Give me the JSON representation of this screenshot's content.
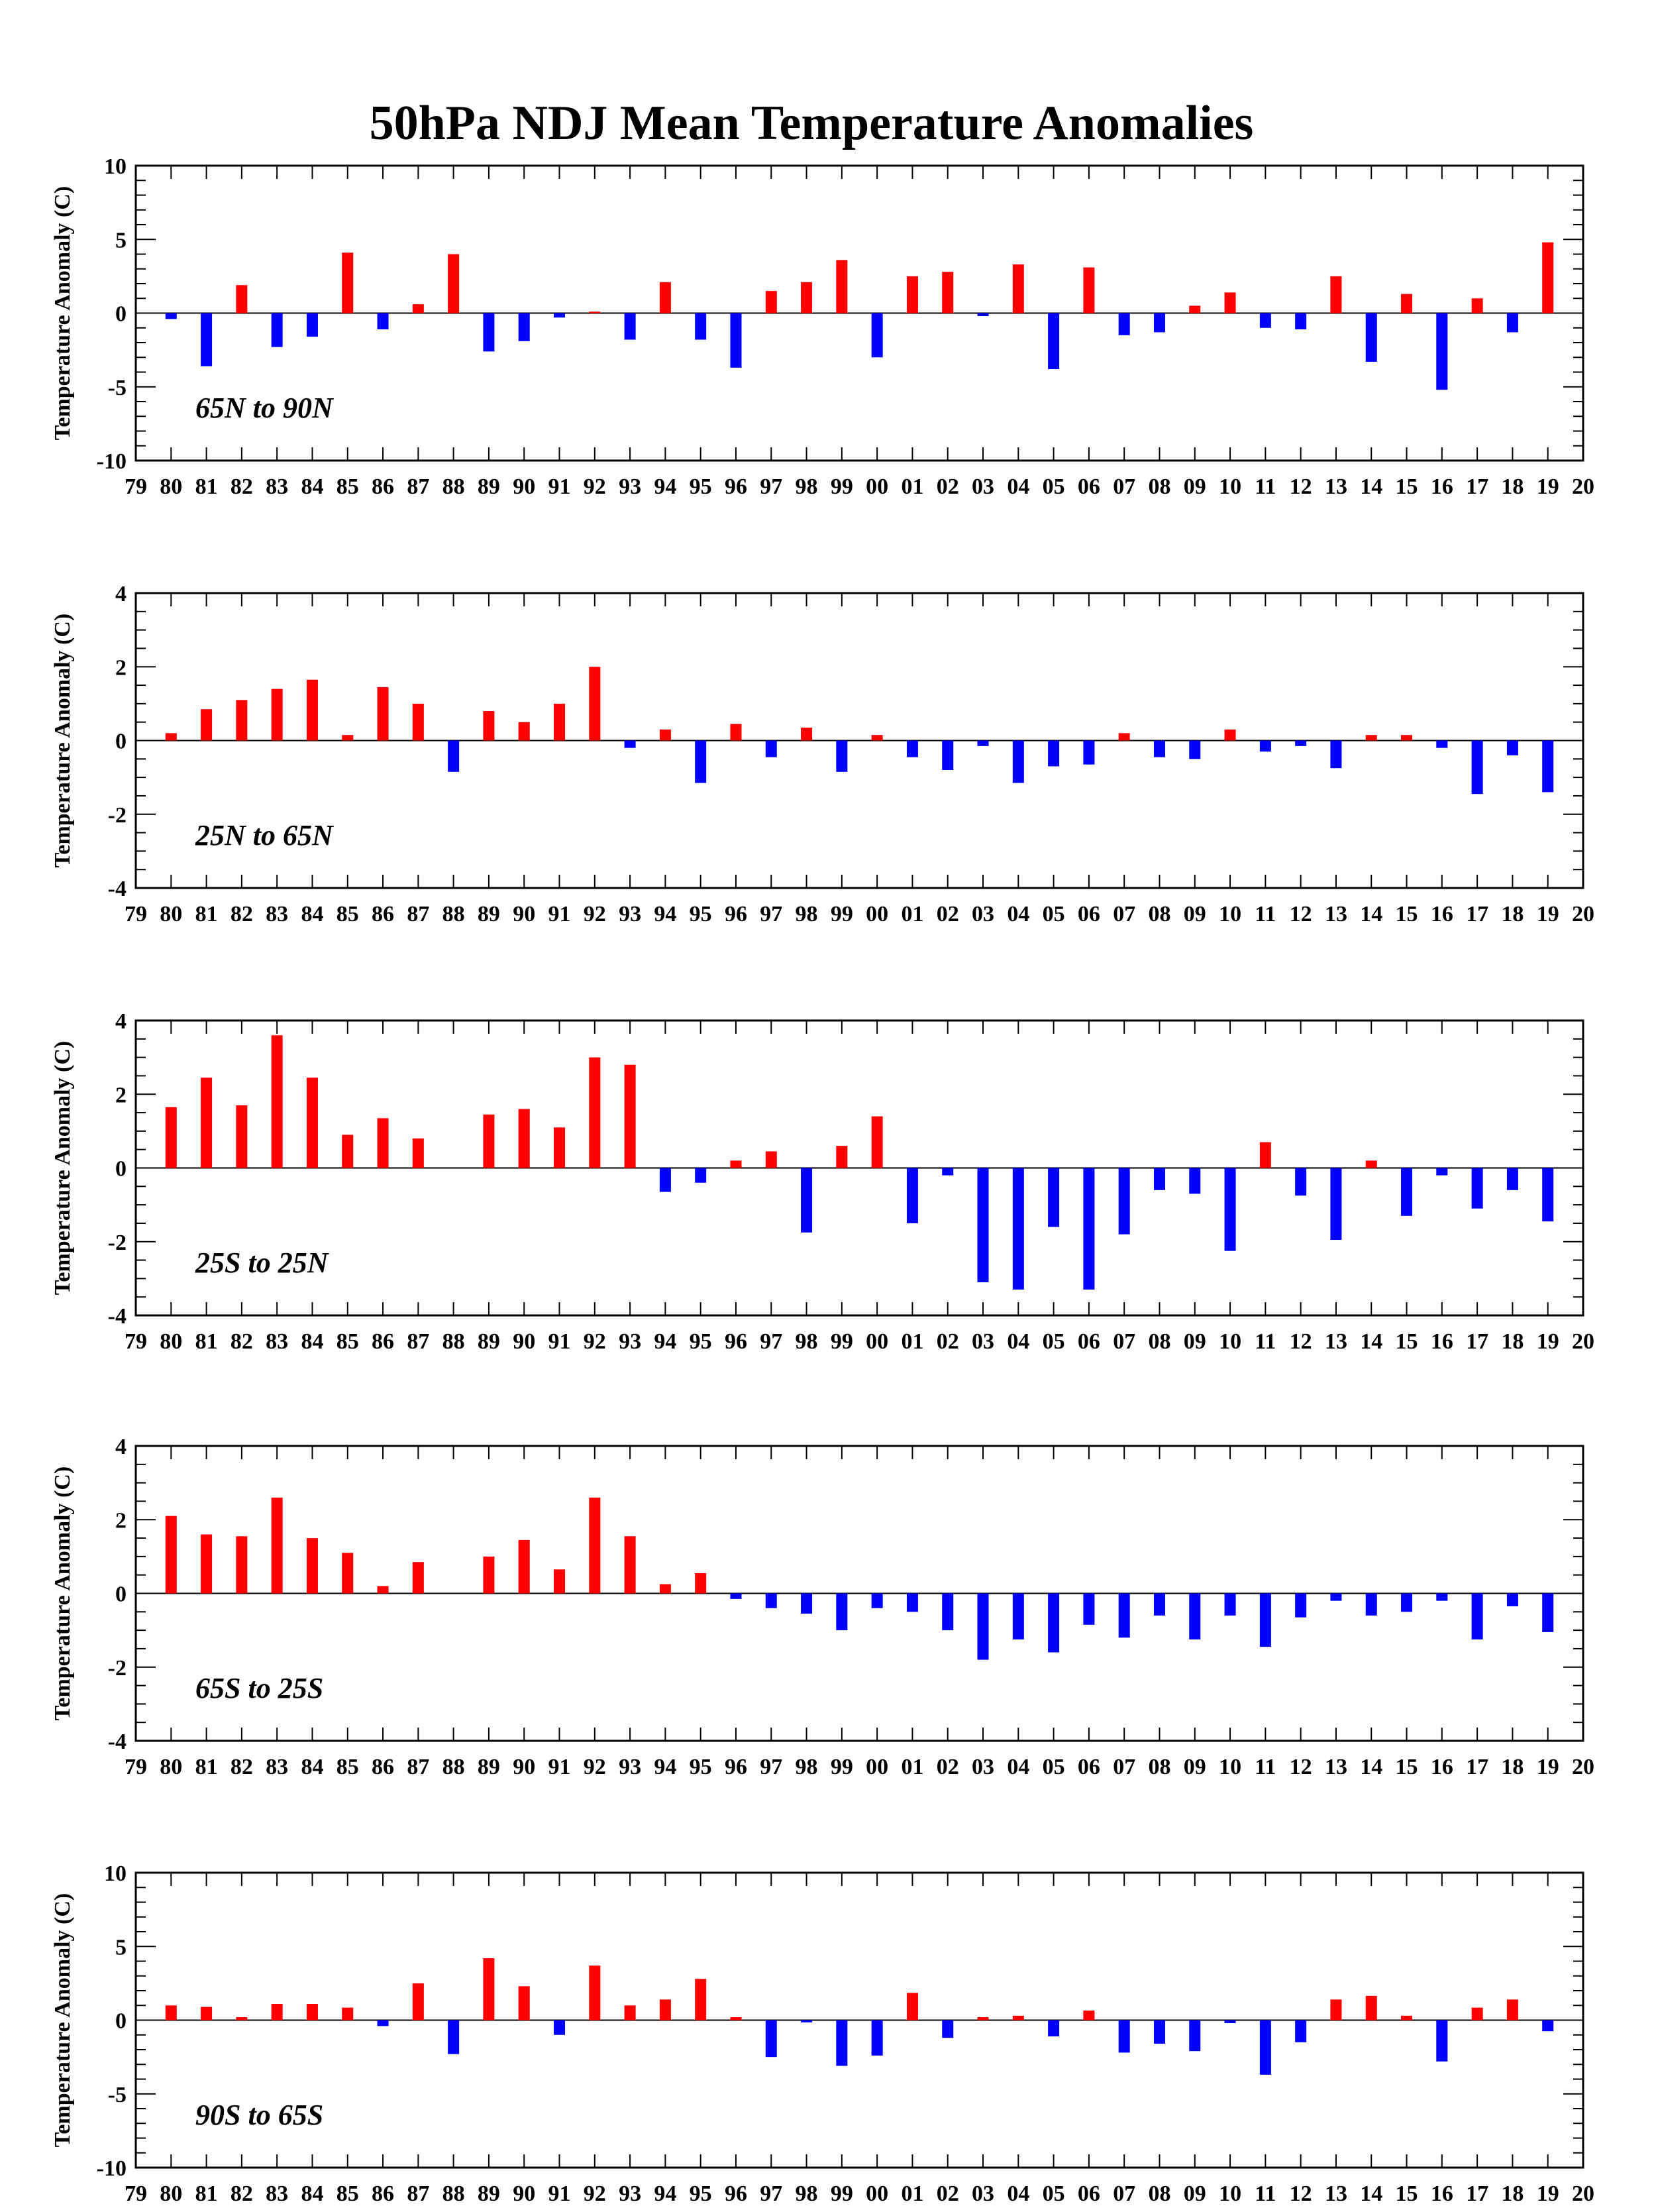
{
  "figure_title": "50hPa NDJ Mean Temperature Anomalies",
  "colors": {
    "positive": "#ff0000",
    "negative": "#0000ff",
    "axis": "#000000"
  },
  "chart_data": [
    {
      "type": "bar",
      "region_label": "65N to 90N",
      "ylabel": "Temperature Anomaly (C)",
      "ylim": [
        -10,
        10
      ],
      "yticks": [
        -10,
        -5,
        0,
        5,
        10
      ],
      "xtick_labels": [
        "79",
        "80",
        "81",
        "82",
        "83",
        "84",
        "85",
        "86",
        "87",
        "88",
        "89",
        "90",
        "91",
        "92",
        "93",
        "94",
        "95",
        "96",
        "97",
        "98",
        "99",
        "00",
        "01",
        "02",
        "03",
        "04",
        "05",
        "06",
        "07",
        "08",
        "09",
        "10",
        "11",
        "12",
        "13",
        "14",
        "15",
        "16",
        "17",
        "18",
        "19",
        "20"
      ],
      "categories": [
        "80",
        "81",
        "82",
        "83",
        "84",
        "85",
        "86",
        "87",
        "88",
        "89",
        "90",
        "91",
        "92",
        "93",
        "94",
        "95",
        "96",
        "97",
        "98",
        "99",
        "00",
        "01",
        "02",
        "03",
        "04",
        "05",
        "06",
        "07",
        "08",
        "09",
        "10",
        "11",
        "12",
        "13",
        "14",
        "15",
        "16",
        "17",
        "18",
        "19"
      ],
      "values": [
        -0.4,
        -3.6,
        1.9,
        -2.3,
        -1.6,
        4.1,
        -1.1,
        0.6,
        4.0,
        -2.6,
        -1.9,
        -0.3,
        0.1,
        -1.8,
        2.1,
        -1.8,
        -3.7,
        1.5,
        2.1,
        3.6,
        -3.0,
        2.5,
        2.8,
        -0.2,
        3.3,
        -3.8,
        3.1,
        -1.5,
        -1.3,
        0.5,
        1.4,
        -1.0,
        -1.1,
        2.5,
        -3.3,
        1.3,
        -5.2,
        1.0,
        -1.3,
        4.8
      ]
    },
    {
      "type": "bar",
      "region_label": "25N to 65N",
      "ylabel": "Temperature Anomaly (C)",
      "ylim": [
        -4,
        4
      ],
      "yticks": [
        -4,
        -2,
        0,
        2,
        4
      ],
      "xtick_labels": [
        "79",
        "80",
        "81",
        "82",
        "83",
        "84",
        "85",
        "86",
        "87",
        "88",
        "89",
        "90",
        "91",
        "92",
        "93",
        "94",
        "95",
        "96",
        "97",
        "98",
        "99",
        "00",
        "01",
        "02",
        "03",
        "04",
        "05",
        "06",
        "07",
        "08",
        "09",
        "10",
        "11",
        "12",
        "13",
        "14",
        "15",
        "16",
        "17",
        "18",
        "19",
        "20"
      ],
      "categories": [
        "80",
        "81",
        "82",
        "83",
        "84",
        "85",
        "86",
        "87",
        "88",
        "89",
        "90",
        "91",
        "92",
        "93",
        "94",
        "95",
        "96",
        "97",
        "98",
        "99",
        "00",
        "01",
        "02",
        "03",
        "04",
        "05",
        "06",
        "07",
        "08",
        "09",
        "10",
        "11",
        "12",
        "13",
        "14",
        "15",
        "16",
        "17",
        "18",
        "19"
      ],
      "values": [
        0.2,
        0.85,
        1.1,
        1.4,
        1.65,
        0.15,
        1.45,
        1.0,
        -0.85,
        0.8,
        0.5,
        1.0,
        2.0,
        -0.2,
        0.3,
        -1.15,
        0.45,
        -0.45,
        0.35,
        -0.85,
        0.15,
        -0.45,
        -0.8,
        -0.15,
        -1.15,
        -0.7,
        -0.65,
        0.2,
        -0.45,
        -0.5,
        0.3,
        -0.3,
        -0.15,
        -0.75,
        0.15,
        0.15,
        -0.2,
        -1.45,
        -0.4,
        -1.4
      ]
    },
    {
      "type": "bar",
      "region_label": "25S to 25N",
      "ylabel": "Temperature Anomaly (C)",
      "ylim": [
        -4,
        4
      ],
      "yticks": [
        -4,
        -2,
        0,
        2,
        4
      ],
      "xtick_labels": [
        "79",
        "80",
        "81",
        "82",
        "83",
        "84",
        "85",
        "86",
        "87",
        "88",
        "89",
        "90",
        "91",
        "92",
        "93",
        "94",
        "95",
        "96",
        "97",
        "98",
        "99",
        "00",
        "01",
        "02",
        "03",
        "04",
        "05",
        "06",
        "07",
        "08",
        "09",
        "10",
        "11",
        "12",
        "13",
        "14",
        "15",
        "16",
        "17",
        "18",
        "19",
        "20"
      ],
      "categories": [
        "80",
        "81",
        "82",
        "83",
        "84",
        "85",
        "86",
        "87",
        "88",
        "89",
        "90",
        "91",
        "92",
        "93",
        "94",
        "95",
        "96",
        "97",
        "98",
        "99",
        "00",
        "01",
        "02",
        "03",
        "04",
        "05",
        "06",
        "07",
        "08",
        "09",
        "10",
        "11",
        "12",
        "13",
        "14",
        "15",
        "16",
        "17",
        "18",
        "19"
      ],
      "values": [
        1.65,
        2.45,
        1.7,
        3.6,
        2.45,
        0.9,
        1.35,
        0.8,
        0.0,
        1.45,
        1.6,
        1.1,
        3.0,
        2.8,
        -0.65,
        -0.4,
        0.2,
        0.45,
        -1.75,
        0.6,
        1.4,
        -1.5,
        -0.2,
        -3.1,
        -3.3,
        -1.6,
        -3.3,
        -1.8,
        -0.6,
        -0.7,
        -2.25,
        0.7,
        -0.75,
        -1.95,
        0.2,
        -1.3,
        -0.2,
        -1.1,
        -0.6,
        -1.45
      ]
    },
    {
      "type": "bar",
      "region_label": "65S to 25S",
      "ylabel": "Temperature Anomaly (C)",
      "ylim": [
        -4,
        4
      ],
      "yticks": [
        -4,
        -2,
        0,
        2,
        4
      ],
      "xtick_labels": [
        "79",
        "80",
        "81",
        "82",
        "83",
        "84",
        "85",
        "86",
        "87",
        "88",
        "89",
        "90",
        "91",
        "92",
        "93",
        "94",
        "95",
        "96",
        "97",
        "98",
        "99",
        "00",
        "01",
        "02",
        "03",
        "04",
        "05",
        "06",
        "07",
        "08",
        "09",
        "10",
        "11",
        "12",
        "13",
        "14",
        "15",
        "16",
        "17",
        "18",
        "19",
        "20"
      ],
      "categories": [
        "80",
        "81",
        "82",
        "83",
        "84",
        "85",
        "86",
        "87",
        "88",
        "89",
        "90",
        "91",
        "92",
        "93",
        "94",
        "95",
        "96",
        "97",
        "98",
        "99",
        "00",
        "01",
        "02",
        "03",
        "04",
        "05",
        "06",
        "07",
        "08",
        "09",
        "10",
        "11",
        "12",
        "13",
        "14",
        "15",
        "16",
        "17",
        "18",
        "19"
      ],
      "values": [
        2.1,
        1.6,
        1.55,
        2.6,
        1.5,
        1.1,
        0.2,
        0.85,
        0.0,
        1.0,
        1.45,
        0.65,
        2.6,
        1.55,
        0.25,
        0.55,
        -0.15,
        -0.4,
        -0.55,
        -1.0,
        -0.4,
        -0.5,
        -1.0,
        -1.8,
        -1.25,
        -1.6,
        -0.85,
        -1.2,
        -0.6,
        -1.25,
        -0.6,
        -1.45,
        -0.65,
        -0.2,
        -0.6,
        -0.5,
        -0.2,
        -1.25,
        -0.35,
        -1.05
      ]
    },
    {
      "type": "bar",
      "region_label": "90S to 65S",
      "ylabel": "Temperature Anomaly (C)",
      "ylim": [
        -10,
        10
      ],
      "yticks": [
        -10,
        -5,
        0,
        5,
        10
      ],
      "xtick_labels": [
        "79",
        "80",
        "81",
        "82",
        "83",
        "84",
        "85",
        "86",
        "87",
        "88",
        "89",
        "90",
        "91",
        "92",
        "93",
        "94",
        "95",
        "96",
        "97",
        "98",
        "99",
        "00",
        "01",
        "02",
        "03",
        "04",
        "05",
        "06",
        "07",
        "08",
        "09",
        "10",
        "11",
        "12",
        "13",
        "14",
        "15",
        "16",
        "17",
        "18",
        "19",
        "20"
      ],
      "categories": [
        "80",
        "81",
        "82",
        "83",
        "84",
        "85",
        "86",
        "87",
        "88",
        "89",
        "90",
        "91",
        "92",
        "93",
        "94",
        "95",
        "96",
        "97",
        "98",
        "99",
        "00",
        "01",
        "02",
        "03",
        "04",
        "05",
        "06",
        "07",
        "08",
        "09",
        "10",
        "11",
        "12",
        "13",
        "14",
        "15",
        "16",
        "17",
        "18",
        "19"
      ],
      "values": [
        1.0,
        0.9,
        0.2,
        1.1,
        1.1,
        0.85,
        -0.4,
        2.5,
        -2.3,
        4.2,
        2.3,
        -1.0,
        3.7,
        1.0,
        1.4,
        2.8,
        0.2,
        -2.5,
        -0.15,
        -3.1,
        -2.4,
        1.85,
        -1.2,
        0.2,
        0.3,
        -1.1,
        0.65,
        -2.2,
        -1.6,
        -2.1,
        -0.2,
        -3.7,
        -1.5,
        1.4,
        1.65,
        0.3,
        -2.8,
        0.85,
        1.4,
        -0.75
      ]
    }
  ]
}
